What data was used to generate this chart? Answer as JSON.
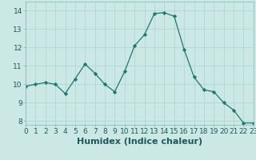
{
  "x": [
    0,
    1,
    2,
    3,
    4,
    5,
    6,
    7,
    8,
    9,
    10,
    11,
    12,
    13,
    14,
    15,
    16,
    17,
    18,
    19,
    20,
    21,
    22,
    23
  ],
  "y": [
    9.9,
    10.0,
    10.1,
    10.0,
    9.5,
    10.3,
    11.1,
    10.6,
    10.0,
    9.6,
    10.7,
    12.1,
    12.7,
    13.85,
    13.9,
    13.7,
    11.9,
    10.4,
    9.7,
    9.6,
    9.0,
    8.6,
    7.9,
    7.9
  ],
  "xlabel": "Humidex (Indice chaleur)",
  "ylim": [
    7.8,
    14.5
  ],
  "xlim": [
    0,
    23
  ],
  "yticks": [
    8,
    9,
    10,
    11,
    12,
    13,
    14
  ],
  "xticks": [
    0,
    1,
    2,
    3,
    4,
    5,
    6,
    7,
    8,
    9,
    10,
    11,
    12,
    13,
    14,
    15,
    16,
    17,
    18,
    19,
    20,
    21,
    22,
    23
  ],
  "line_color": "#1a7a6e",
  "marker_color": "#1a7a6e",
  "bg_color": "#cce8e5",
  "grid_color": "#b0d8d4",
  "xlabel_fontsize": 8,
  "tick_fontsize": 6.5
}
